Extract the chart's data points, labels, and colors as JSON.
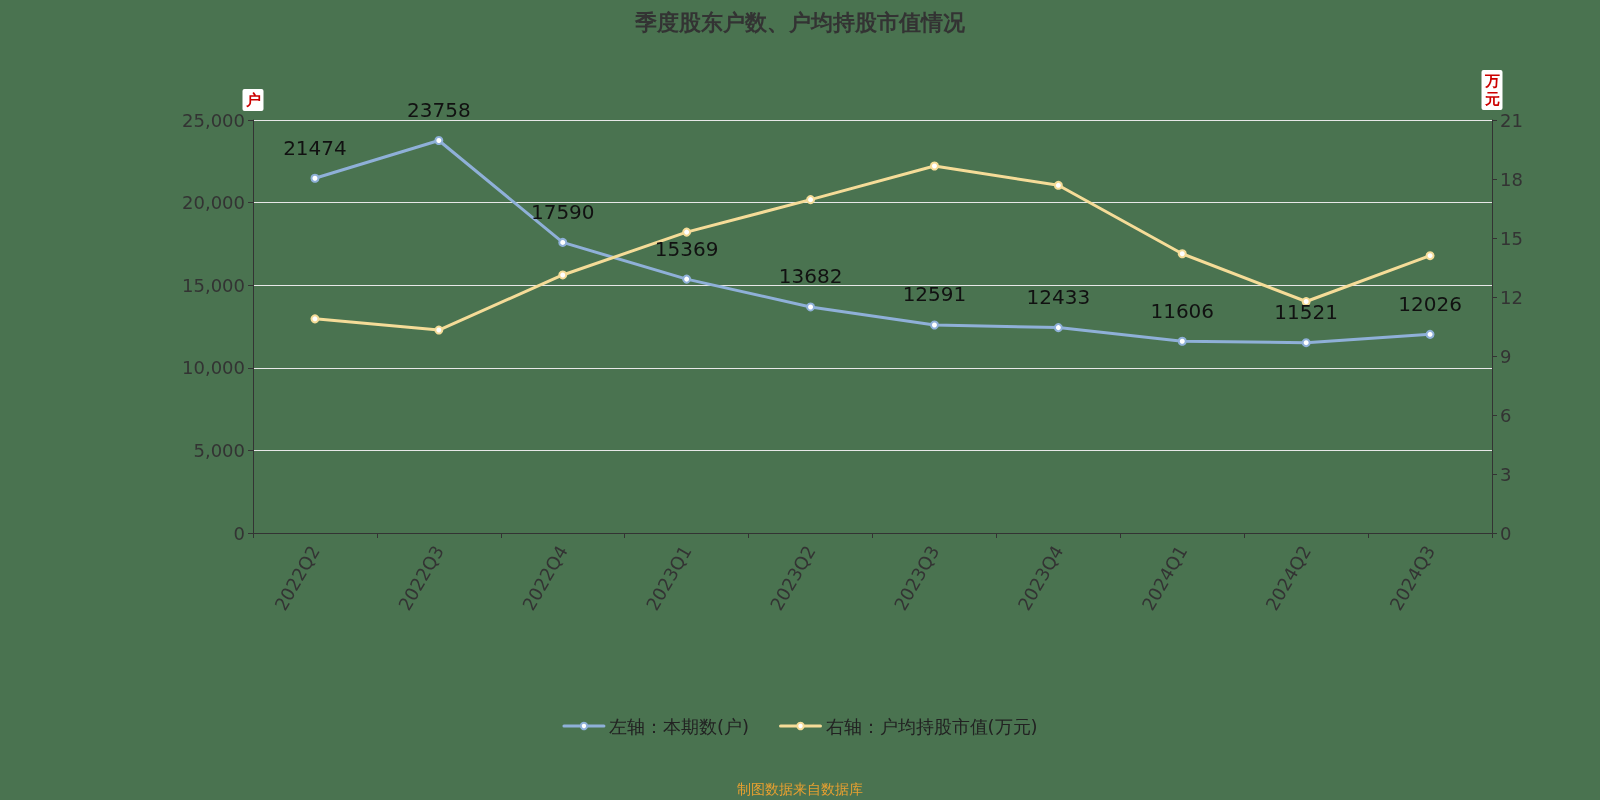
{
  "chart_data": {
    "type": "line",
    "title": "季度股东户数、户均持股市值情况",
    "ylabel": "户",
    "y2label": "万元",
    "categories": [
      "2022Q2",
      "2022Q3",
      "2022Q4",
      "2023Q1",
      "2023Q2",
      "2023Q3",
      "2023Q4",
      "2024Q1",
      "2024Q2",
      "2024Q3"
    ],
    "series": [
      {
        "name": "左轴：本期数(户)",
        "color": "#8fb0d8",
        "values": [
          21474,
          23758,
          17590,
          15369,
          13682,
          12591,
          12433,
          11606,
          11521,
          12026
        ],
        "value_labels": [
          "21474",
          "23758",
          "17590",
          "15369",
          "13682",
          "12591",
          "12433",
          "11606",
          "11521",
          "12026"
        ]
      },
      {
        "name": "右轴：户均持股市值(万元)",
        "color": "#f5dc98",
        "axis": "y2",
        "values": [
          10.89,
          10.32,
          13.12,
          15.3,
          16.95,
          18.66,
          17.68,
          14.2,
          11.77,
          14.1
        ]
      }
    ],
    "ylim": [
      0,
      25000
    ],
    "yticks": [
      {
        "value": 0,
        "label": "0"
      },
      {
        "value": 5000,
        "label": "5,000"
      },
      {
        "value": 10000,
        "label": "10,000"
      },
      {
        "value": 15000,
        "label": "15,000"
      },
      {
        "value": 20000,
        "label": "20,000"
      },
      {
        "value": 25000,
        "label": "25,000"
      }
    ],
    "y2lim": [
      0,
      21
    ],
    "y2ticks": [
      0,
      3,
      6,
      9,
      12,
      15,
      18,
      21
    ],
    "grid": "y",
    "legend": "bottom",
    "marker": "circle",
    "line_style": "solid",
    "annotations": [
      "制图数据来自数据库"
    ]
  }
}
